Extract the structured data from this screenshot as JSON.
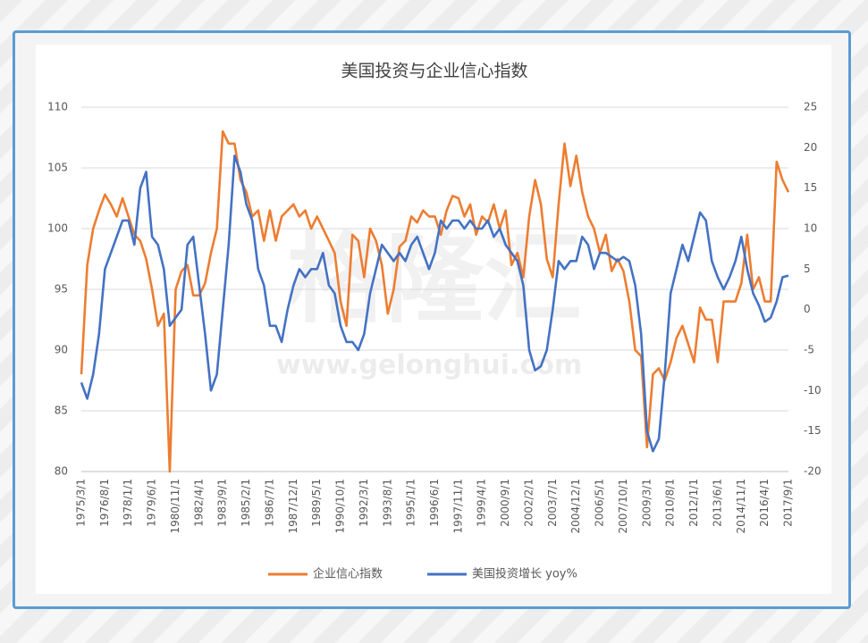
{
  "chart_data": {
    "type": "line",
    "title": "美国投资与企业信心指数",
    "watermark": [
      "格隆汇",
      "www.gelonghui.com"
    ],
    "categories": [
      "1975/3/1",
      null,
      null,
      null,
      "1976/8/1",
      null,
      null,
      null,
      "1978/1/1",
      null,
      null,
      null,
      "1979/6/1",
      null,
      null,
      null,
      "1980/11/1",
      null,
      null,
      null,
      "1982/4/1",
      null,
      null,
      null,
      "1983/9/1",
      null,
      null,
      null,
      "1985/2/1",
      null,
      null,
      null,
      "1986/7/1",
      null,
      null,
      null,
      "1987/12/1",
      null,
      null,
      null,
      "1989/5/1",
      null,
      null,
      null,
      "1990/10/1",
      null,
      null,
      null,
      "1992/3/1",
      null,
      null,
      null,
      "1993/8/1",
      null,
      null,
      null,
      "1995/1/1",
      null,
      null,
      null,
      "1996/6/1",
      null,
      null,
      null,
      "1997/11/1",
      null,
      null,
      null,
      "1999/4/1",
      null,
      null,
      null,
      "2000/9/1",
      null,
      null,
      null,
      "2002/2/1",
      null,
      null,
      null,
      "2003/7/1",
      null,
      null,
      null,
      "2004/12/1",
      null,
      null,
      null,
      "2006/5/1",
      null,
      null,
      null,
      "2007/10/1",
      null,
      null,
      null,
      "2009/3/1",
      null,
      null,
      null,
      "2010/8/1",
      null,
      null,
      null,
      "2012/1/1",
      null,
      null,
      null,
      "2013/6/1",
      null,
      null,
      null,
      "2014/11/1",
      null,
      null,
      null,
      "2016/4/1",
      null,
      null,
      null,
      "2017/9/1"
    ],
    "series": [
      {
        "name": "企业信心指数",
        "color": "#ed7d31",
        "axis": "y",
        "values": [
          88,
          97,
          100,
          101.5,
          102.8,
          102,
          101,
          102.5,
          101,
          99.5,
          99,
          97.5,
          95,
          92,
          93,
          80,
          95,
          96.5,
          97,
          94.5,
          94.5,
          95.5,
          98,
          100,
          108,
          107,
          107,
          104,
          103,
          101,
          101.5,
          99,
          101.5,
          99,
          101,
          101.5,
          102,
          101,
          101.5,
          100,
          101,
          100,
          99,
          98,
          94,
          92,
          99.5,
          99,
          96,
          100,
          99,
          97,
          93,
          95,
          98.5,
          99,
          101,
          100.5,
          101.5,
          101,
          101,
          99.5,
          101.5,
          102.7,
          102.5,
          101,
          102,
          99.5,
          101,
          100.5,
          102,
          100,
          101.5,
          97,
          98,
          96,
          101,
          104,
          102,
          97.5,
          96,
          102,
          107,
          103.5,
          106,
          103,
          101,
          100,
          98,
          99.5,
          96.5,
          97.5,
          96.5,
          94,
          90,
          89.5,
          82,
          88,
          88.5,
          87.5,
          89,
          91,
          92,
          90.5,
          89,
          93.5,
          92.5,
          92.5,
          89,
          94,
          94,
          94,
          95.5,
          99.5,
          95,
          96,
          94,
          94,
          105.5,
          104,
          103
        ]
      },
      {
        "name": "美国投资增长 yoy%",
        "color": "#4472c4",
        "axis": "y2",
        "values": [
          -9,
          -11,
          -8,
          -3,
          5,
          7,
          9,
          11,
          11,
          8,
          15,
          17,
          9,
          8,
          5,
          -2,
          -1,
          0,
          8,
          9,
          3,
          -3,
          -10,
          -8,
          0,
          8,
          19,
          17,
          13,
          11,
          5,
          3,
          -2,
          -2,
          -4,
          0,
          3,
          5,
          4,
          5,
          5,
          7,
          3,
          2,
          -2,
          -4,
          -4,
          -5,
          -3,
          2,
          5,
          8,
          7,
          6,
          7,
          6,
          8,
          9,
          7,
          5,
          7,
          11,
          10,
          11,
          11,
          10,
          11,
          10,
          10,
          11,
          9,
          10,
          8,
          7,
          6,
          3,
          -5,
          -7.5,
          -7,
          -5,
          0,
          6,
          5,
          6,
          6,
          9,
          8,
          5,
          7,
          7,
          6.5,
          6,
          6.5,
          6,
          3,
          -3,
          -15,
          -17.5,
          -16,
          -8,
          2,
          5,
          8,
          6,
          9,
          12,
          11,
          6,
          4,
          2.5,
          4,
          6,
          9,
          5,
          2,
          0.5,
          -1.5,
          -1,
          1,
          4,
          4.2
        ]
      }
    ],
    "ylim": [
      80,
      110
    ],
    "yticks": [
      80,
      85,
      90,
      95,
      100,
      105,
      110
    ],
    "y2lim": [
      -20,
      25
    ],
    "y2ticks": [
      -20,
      -15,
      -10,
      -5,
      0,
      5,
      10,
      15,
      20,
      25
    ],
    "grid": true,
    "legend": "bottom"
  }
}
